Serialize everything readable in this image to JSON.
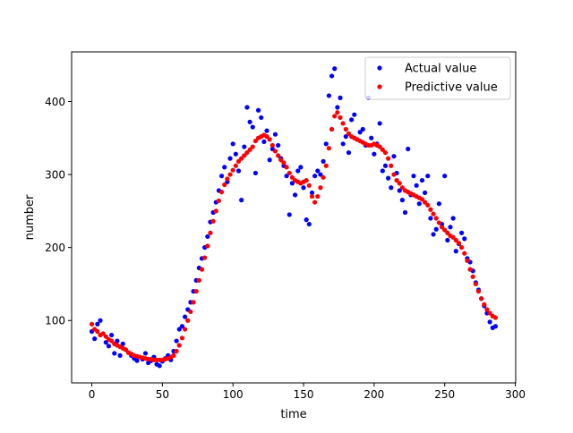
{
  "chart_data": {
    "type": "scatter",
    "title": "",
    "xlabel": "time",
    "ylabel": "number",
    "xlim": [
      -14.3,
      300.3
    ],
    "ylim": [
      14.5,
      468
    ],
    "xticks": [
      0,
      50,
      100,
      150,
      200,
      250,
      300
    ],
    "yticks": [
      100,
      200,
      300,
      400
    ],
    "grid": false,
    "legend_position": "upper right",
    "series": [
      {
        "name": "Actual value",
        "color": "#0000ff",
        "x": [
          0,
          2,
          4,
          6,
          8,
          10,
          12,
          14,
          16,
          18,
          20,
          22,
          24,
          26,
          28,
          30,
          32,
          34,
          36,
          38,
          40,
          42,
          44,
          46,
          48,
          50,
          52,
          54,
          56,
          58,
          60,
          62,
          64,
          66,
          68,
          70,
          72,
          74,
          76,
          78,
          80,
          82,
          84,
          86,
          88,
          90,
          92,
          94,
          96,
          98,
          100,
          102,
          104,
          106,
          108,
          110,
          112,
          114,
          116,
          118,
          120,
          122,
          124,
          126,
          128,
          130,
          132,
          134,
          136,
          138,
          140,
          142,
          144,
          146,
          148,
          150,
          152,
          154,
          156,
          158,
          160,
          162,
          164,
          166,
          168,
          170,
          172,
          174,
          176,
          178,
          180,
          182,
          184,
          186,
          188,
          190,
          192,
          194,
          196,
          198,
          200,
          202,
          204,
          206,
          208,
          210,
          212,
          214,
          216,
          218,
          220,
          222,
          224,
          226,
          228,
          230,
          232,
          234,
          236,
          238,
          240,
          242,
          244,
          246,
          248,
          250,
          252,
          254,
          256,
          258,
          260,
          262,
          264,
          266,
          268,
          270,
          272,
          274,
          276,
          278,
          280,
          282,
          284,
          286
        ],
        "y": [
          85,
          75,
          95,
          100,
          82,
          70,
          65,
          80,
          55,
          72,
          52,
          68,
          60,
          56,
          52,
          48,
          45,
          50,
          47,
          55,
          42,
          45,
          50,
          40,
          38,
          44,
          48,
          52,
          46,
          58,
          72,
          88,
          92,
          105,
          115,
          125,
          140,
          155,
          172,
          185,
          200,
          215,
          235,
          248,
          262,
          278,
          298,
          310,
          290,
          322,
          342,
          328,
          305,
          265,
          338,
          392,
          372,
          365,
          302,
          388,
          378,
          345,
          360,
          320,
          335,
          355,
          340,
          322,
          312,
          298,
          245,
          288,
          272,
          305,
          310,
          282,
          238,
          232,
          275,
          298,
          305,
          300,
          318,
          342,
          408,
          435,
          445,
          392,
          405,
          342,
          352,
          330,
          375,
          382,
          348,
          358,
          362,
          340,
          405,
          350,
          328,
          342,
          370,
          305,
          312,
          295,
          282,
          325,
          302,
          278,
          265,
          248,
          335,
          272,
          298,
          285,
          260,
          292,
          275,
          298,
          240,
          218,
          225,
          260,
          232,
          298,
          210,
          228,
          240,
          195,
          205,
          220,
          212,
          185,
          180,
          168,
          152,
          142,
          130,
          120,
          110,
          98,
          90,
          92
        ]
      },
      {
        "name": "Predictive value",
        "color": "#ff0000",
        "x": [
          0,
          2,
          4,
          6,
          8,
          10,
          12,
          14,
          16,
          18,
          20,
          22,
          24,
          26,
          28,
          30,
          32,
          34,
          36,
          38,
          40,
          42,
          44,
          46,
          48,
          50,
          52,
          54,
          56,
          58,
          60,
          62,
          64,
          66,
          68,
          70,
          72,
          74,
          76,
          78,
          80,
          82,
          84,
          86,
          88,
          90,
          92,
          94,
          96,
          98,
          100,
          102,
          104,
          106,
          108,
          110,
          112,
          114,
          116,
          118,
          120,
          122,
          124,
          126,
          128,
          130,
          132,
          134,
          136,
          138,
          140,
          142,
          144,
          146,
          148,
          150,
          152,
          154,
          156,
          158,
          160,
          162,
          164,
          166,
          168,
          170,
          172,
          174,
          176,
          178,
          180,
          182,
          184,
          186,
          188,
          190,
          192,
          194,
          196,
          198,
          200,
          202,
          204,
          206,
          208,
          210,
          212,
          214,
          216,
          218,
          220,
          222,
          224,
          226,
          228,
          230,
          232,
          234,
          236,
          238,
          240,
          242,
          244,
          246,
          248,
          250,
          252,
          254,
          256,
          258,
          260,
          262,
          264,
          266,
          268,
          270,
          272,
          274,
          276,
          278,
          280,
          282,
          284,
          286
        ],
        "y": [
          95,
          88,
          85,
          80,
          82,
          78,
          74,
          72,
          68,
          66,
          64,
          62,
          60,
          56,
          54,
          52,
          51,
          50,
          49,
          48,
          47,
          47,
          46,
          46,
          46,
          46,
          47,
          48,
          50,
          52,
          58,
          66,
          76,
          88,
          100,
          112,
          125,
          140,
          155,
          170,
          186,
          202,
          220,
          236,
          250,
          264,
          276,
          286,
          294,
          300,
          306,
          312,
          318,
          322,
          326,
          330,
          334,
          338,
          346,
          350,
          352,
          354,
          352,
          348,
          340,
          332,
          326,
          320,
          316,
          310,
          302,
          296,
          292,
          290,
          288,
          290,
          292,
          285,
          270,
          262,
          270,
          282,
          296,
          312,
          336,
          362,
          380,
          385,
          378,
          370,
          362,
          356,
          352,
          350,
          348,
          346,
          344,
          342,
          340,
          340,
          342,
          340,
          338,
          334,
          330,
          322,
          312,
          300,
          292,
          288,
          282,
          278,
          276,
          274,
          272,
          270,
          268,
          266,
          262,
          258,
          252,
          246,
          240,
          234,
          228,
          224,
          220,
          216,
          214,
          210,
          206,
          200,
          192,
          182,
          170,
          160,
          150,
          140,
          130,
          122,
          115,
          110,
          106,
          104
        ]
      }
    ]
  }
}
